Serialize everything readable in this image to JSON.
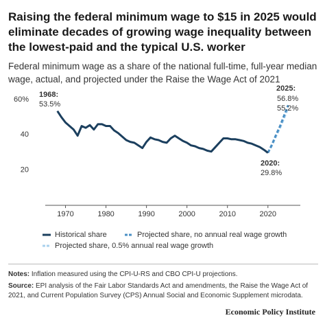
{
  "title": "Raising the federal minimum wage to $15 in 2025 would eliminate decades of growing wage inequality between the lowest-paid and the typical U.S. worker",
  "subtitle": "Federal minimum wage as a share of the national full-time, full-year median wage, actual, and projected under the Raise the Wage Act of 2021",
  "chart_data": {
    "type": "line",
    "xlim": [
      1965,
      2028
    ],
    "xticks": [
      1970,
      1980,
      1990,
      2000,
      2010,
      2020
    ],
    "ylim": [
      0,
      60
    ],
    "yticks": [
      20,
      40,
      {
        "value": 60,
        "label": "60%"
      }
    ],
    "grid": false,
    "annotations": [
      "1968:",
      "53.5%",
      "2020:",
      "29.8%",
      "2025:",
      "56.8%",
      "55.2%"
    ],
    "series": [
      {
        "name": "Historical share",
        "color": "#1b3f5e",
        "dash": false,
        "x": [
          1968,
          1969,
          1970,
          1971,
          1972,
          1973,
          1974,
          1975,
          1976,
          1977,
          1978,
          1979,
          1980,
          1981,
          1982,
          1983,
          1984,
          1985,
          1986,
          1987,
          1988,
          1989,
          1990,
          1991,
          1992,
          1993,
          1994,
          1995,
          1996,
          1997,
          1998,
          1999,
          2000,
          2001,
          2002,
          2003,
          2004,
          2005,
          2006,
          2007,
          2008,
          2009,
          2010,
          2011,
          2012,
          2013,
          2014,
          2015,
          2016,
          2017,
          2018,
          2019,
          2020
        ],
        "values": [
          53.5,
          50,
          47,
          45,
          43,
          39.5,
          45,
          44,
          45.5,
          43,
          46,
          46,
          45,
          45,
          42.5,
          41,
          39,
          37,
          36,
          35.5,
          34,
          32.5,
          36,
          38.5,
          37.5,
          37,
          36,
          35.5,
          38,
          39.5,
          38,
          36.5,
          35.5,
          34,
          33.5,
          32.5,
          32,
          31,
          30.5,
          33,
          35.5,
          38,
          38,
          37.5,
          37.5,
          37,
          36.5,
          35.5,
          35,
          34,
          33,
          31.5,
          29.8
        ]
      },
      {
        "name": "Projected share, no annual real wage growth",
        "color": "#4a8fc4",
        "dash": true,
        "x": [
          2020,
          2021,
          2022,
          2023,
          2024,
          2025
        ],
        "values": [
          29.8,
          34.5,
          40,
          45,
          51,
          56.8
        ]
      },
      {
        "name": "Projected share, 0.5% annual real wage growth",
        "color": "#a9d1ee",
        "dash": true,
        "x": [
          2020,
          2021,
          2022,
          2023,
          2024,
          2025
        ],
        "values": [
          29.8,
          34,
          39.2,
          44,
          49.5,
          55.2
        ]
      }
    ]
  },
  "notes": {
    "label": "Notes:",
    "text": "Inflation measured using the CPI-U-RS and CBO CPI-U projections."
  },
  "source": {
    "label": "Source:",
    "text": "EPI analysis of the Fair Labor Standards Act and amendments, the Raise the Wage Act of 2021, and Current Population Survey (CPS) Annual Social and Economic Supplement microdata."
  },
  "footer": "Economic Policy Institute"
}
